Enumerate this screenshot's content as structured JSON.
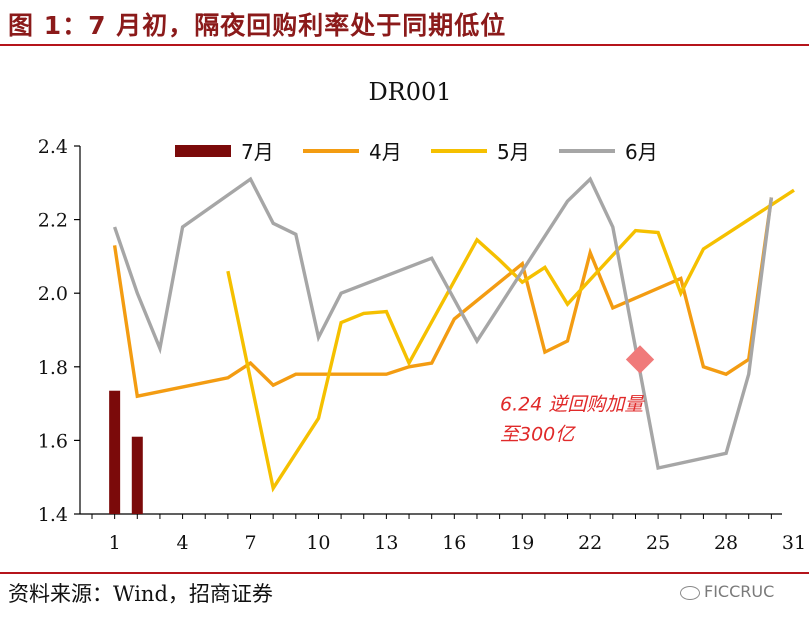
{
  "header": {
    "title": "图 1：7 月初，隔夜回购利率处于同期低位"
  },
  "footer": {
    "source": "资料来源：Wind，招商证券",
    "watermark": "FICCRUC"
  },
  "chart_data": {
    "type": "line",
    "title": "DR001",
    "xlabel": "",
    "ylabel": "",
    "xlim": [
      0,
      31
    ],
    "ylim": [
      1.4,
      2.4
    ],
    "x_ticks": [
      1,
      4,
      7,
      10,
      13,
      16,
      19,
      22,
      25,
      28,
      31
    ],
    "y_ticks": [
      "1.4",
      "1.6",
      "1.8",
      "2.0",
      "2.2",
      "2.4"
    ],
    "legend_position": "top",
    "annotation": {
      "text_line1": "6.24 逆回购加量",
      "text_line2": "至300亿",
      "x": 24.2,
      "y": 1.82,
      "color": "#e02a2a"
    },
    "bars": {
      "name": "7月",
      "color": "#7b0a0a",
      "points": [
        [
          1,
          1.735
        ],
        [
          2,
          1.61
        ]
      ]
    },
    "series": [
      {
        "name": "4月",
        "color": "#f39c12",
        "points": [
          [
            1,
            2.13
          ],
          [
            2,
            1.72
          ],
          [
            6,
            1.77
          ],
          [
            7,
            1.81
          ],
          [
            8,
            1.75
          ],
          [
            9,
            1.78
          ],
          [
            10,
            1.78
          ],
          [
            13,
            1.78
          ],
          [
            14,
            1.8
          ],
          [
            15,
            1.81
          ],
          [
            16,
            1.93
          ],
          [
            19,
            2.08
          ],
          [
            20,
            1.84
          ],
          [
            21,
            1.87
          ],
          [
            22,
            2.11
          ],
          [
            23,
            1.96
          ],
          [
            26,
            2.04
          ],
          [
            27,
            1.8
          ],
          [
            28,
            1.78
          ],
          [
            29,
            1.82
          ],
          [
            30,
            2.26
          ]
        ]
      },
      {
        "name": "5月",
        "color": "#f5c000",
        "points": [
          [
            6,
            2.06
          ],
          [
            8,
            1.47
          ],
          [
            10,
            1.66
          ],
          [
            11,
            1.92
          ],
          [
            12,
            1.945
          ],
          [
            13,
            1.95
          ],
          [
            14,
            1.81
          ],
          [
            17,
            2.145
          ],
          [
            18,
            2.09
          ],
          [
            19,
            2.03
          ],
          [
            20,
            2.07
          ],
          [
            21,
            1.97
          ],
          [
            24,
            2.17
          ],
          [
            25,
            2.165
          ],
          [
            26,
            2.0
          ],
          [
            27,
            2.12
          ],
          [
            28,
            2.16
          ],
          [
            31,
            2.28
          ]
        ]
      },
      {
        "name": "6月",
        "color": "#a6a6a6",
        "points": [
          [
            1,
            2.18
          ],
          [
            2,
            2.0
          ],
          [
            3,
            1.85
          ],
          [
            4,
            2.18
          ],
          [
            7,
            2.31
          ],
          [
            8,
            2.19
          ],
          [
            9,
            2.16
          ],
          [
            10,
            1.88
          ],
          [
            11,
            2.0
          ],
          [
            15,
            2.095
          ],
          [
            17,
            1.87
          ],
          [
            21,
            2.25
          ],
          [
            22,
            2.31
          ],
          [
            23,
            2.18
          ],
          [
            25,
            1.525
          ],
          [
            28,
            1.565
          ],
          [
            29,
            1.78
          ],
          [
            30,
            2.26
          ]
        ]
      }
    ]
  }
}
